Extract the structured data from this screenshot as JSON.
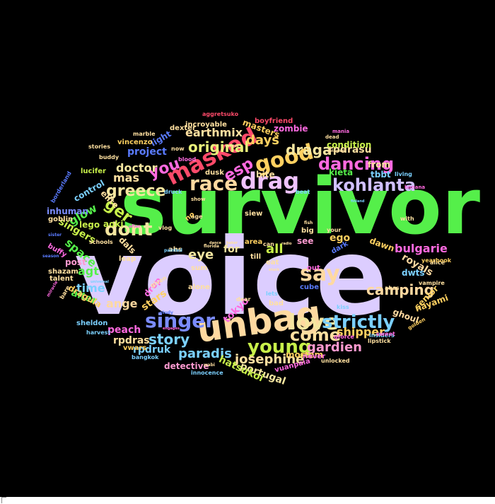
{
  "word_cloud": {
    "background": "#000000",
    "words": [
      {
        "text": "voice",
        "color": "#dccdff"
      },
      {
        "text": "survivor",
        "color": "#55ef4a"
      },
      {
        "text": "unbag",
        "color": "#ffd9a0"
      },
      {
        "text": "singer",
        "color": "#7b8cff"
      },
      {
        "text": "young",
        "color": "#c8f04a"
      },
      {
        "text": "love",
        "color": "#f5e6a0"
      },
      {
        "text": "say",
        "color": "#ffd9a0"
      },
      {
        "text": "drag",
        "color": "#f0c3ff"
      },
      {
        "text": "race",
        "color": "#ffd9a0"
      },
      {
        "text": "masked",
        "color": "#ff4a6a"
      },
      {
        "text": "good",
        "color": "#ffd060"
      },
      {
        "text": "kohlanta",
        "color": "#d0c0ff"
      },
      {
        "text": "dancing",
        "color": "#ff6ae0"
      },
      {
        "text": "dont",
        "color": "#f5e6a0"
      },
      {
        "text": "ger",
        "color": "#c8f04a"
      },
      {
        "text": "greece",
        "color": "#f5e6a0"
      },
      {
        "text": "you",
        "color": "#ff6ae0"
      },
      {
        "text": "esp",
        "color": "#ff6ae0"
      },
      {
        "text": "strictly",
        "color": "#7bd0ff"
      },
      {
        "text": "come",
        "color": "#ffe0a0"
      },
      {
        "text": "camping",
        "color": "#ffd9a0"
      },
      {
        "text": "story",
        "color": "#7bd0ff"
      },
      {
        "text": "original",
        "color": "#e8f07a"
      },
      {
        "text": "draga",
        "color": "#f5e6a0"
      },
      {
        "text": "earthmix",
        "color": "#ffe0a0"
      },
      {
        "text": "mas",
        "color": "#ffe0a0"
      },
      {
        "text": "eye",
        "color": "#f5e6a0"
      },
      {
        "text": "gardien",
        "color": "#ff9ad0"
      },
      {
        "text": "josephine",
        "color": "#ffe0a0"
      },
      {
        "text": "paradis",
        "color": "#7bd0ff"
      },
      {
        "text": "bulgarie",
        "color": "#ff6ae0"
      },
      {
        "text": "days",
        "color": "#ffd060"
      },
      {
        "text": "all",
        "color": "#c8f04a"
      },
      {
        "text": "doctor",
        "color": "#f5e6a0"
      },
      {
        "text": "glow",
        "color": "#55ef4a"
      },
      {
        "text": "time",
        "color": "#7bd0ff"
      },
      {
        "text": "ange",
        "color": "#ffd9a0"
      },
      {
        "text": "agt",
        "color": "#55ef4a"
      },
      {
        "text": "project",
        "color": "#5a7bff"
      },
      {
        "text": "shipper",
        "color": "#ffd060"
      },
      {
        "text": "royals",
        "color": "#ffd9a0"
      },
      {
        "text": "rpdrasu",
        "color": "#ffe0a0"
      },
      {
        "text": "kieta",
        "color": "#55ef4a"
      },
      {
        "text": "ego",
        "color": "#ffd060"
      },
      {
        "text": "peach",
        "color": "#ff6ae0"
      },
      {
        "text": "portugal",
        "color": "#f5e6a0"
      },
      {
        "text": "hatsukoi",
        "color": "#c8f04a"
      },
      {
        "text": "rpdras",
        "color": "#ffe0a0"
      },
      {
        "text": "rpdruk",
        "color": "#7bd0ff"
      },
      {
        "text": "detective",
        "color": "#ff9ad0"
      },
      {
        "text": "masters",
        "color": "#ffd060"
      },
      {
        "text": "zombie",
        "color": "#ff6ae0"
      },
      {
        "text": "mortem",
        "color": "#ffd060"
      },
      {
        "text": "for",
        "color": "#f5e6a0"
      },
      {
        "text": "space",
        "color": "#55ef4a"
      },
      {
        "text": "lego",
        "color": "#c8f04a"
      },
      {
        "text": "singers",
        "color": "#c8f04a"
      },
      {
        "text": "alter",
        "color": "#55ef4a"
      },
      {
        "text": "stars",
        "color": "#ffd060"
      },
      {
        "text": "tokyo",
        "color": "#ff6ae0"
      },
      {
        "text": "bite",
        "color": "#ffe0a0"
      },
      {
        "text": "see",
        "color": "#ff9ad0"
      },
      {
        "text": "dawn",
        "color": "#ffd060"
      },
      {
        "text": "dwts",
        "color": "#7bd0ff"
      },
      {
        "text": "senior",
        "color": "#ffd060"
      },
      {
        "text": "ghoul",
        "color": "#ffd9a0"
      },
      {
        "text": "nayami",
        "color": "#ffd060"
      },
      {
        "text": "tbbt",
        "color": "#7bd0ff"
      },
      {
        "text": "from",
        "color": "#ffe0a0"
      },
      {
        "text": "condition",
        "color": "#c8f04a"
      },
      {
        "text": "inhuman",
        "color": "#7b8cff"
      },
      {
        "text": "post",
        "color": "#ff9ad0"
      },
      {
        "text": "control",
        "color": "#7bd0ff"
      },
      {
        "text": "light",
        "color": "#5a7bff"
      },
      {
        "text": "elite",
        "color": "#ffe0a0"
      },
      {
        "text": "aoki",
        "color": "#c8f04a"
      },
      {
        "text": "dals",
        "color": "#ffe0a0"
      },
      {
        "text": "sheldon",
        "color": "#7bd0ff"
      },
      {
        "text": "dragula",
        "color": "#ffd060"
      },
      {
        "text": "drop",
        "color": "#ff6ae0"
      },
      {
        "text": "vwars",
        "color": "#ffd060"
      },
      {
        "text": "incroyable",
        "color": "#ffe0a0"
      },
      {
        "text": "lucifer",
        "color": "#c8f04a"
      },
      {
        "text": "vincenzo",
        "color": "#ffd060"
      },
      {
        "text": "dexter",
        "color": "#ffe0a0"
      },
      {
        "text": "boyfriend",
        "color": "#ff4a6a"
      },
      {
        "text": "aggretsuko",
        "color": "#ff4a6a"
      },
      {
        "text": "dusk",
        "color": "#ffe0a0"
      },
      {
        "text": "siew",
        "color": "#ffe0a0"
      },
      {
        "text": "area",
        "color": "#ffd060"
      },
      {
        "text": "till",
        "color": "#ffe0a0"
      },
      {
        "text": "eat",
        "color": "#ffe0a0"
      },
      {
        "text": "big",
        "color": "#ffe0a0"
      },
      {
        "text": "dark",
        "color": "#5a7bff"
      },
      {
        "text": "lets",
        "color": "#7bd0ff"
      },
      {
        "text": "bad",
        "color": "#ffe0a0"
      },
      {
        "text": "kiss",
        "color": "#7bd0ff"
      },
      {
        "text": "never",
        "color": "#ff6ae0"
      },
      {
        "text": "vuanpaia",
        "color": "#ff6ae0"
      },
      {
        "text": "unlocked",
        "color": "#ffe0a0"
      },
      {
        "text": "lipstick",
        "color": "#ffe0a0"
      },
      {
        "text": "innocence",
        "color": "#7bd0ff"
      },
      {
        "text": "bangkok",
        "color": "#7bd0ff"
      },
      {
        "text": "harvest",
        "color": "#7bd0ff"
      },
      {
        "text": "sum",
        "color": "#ffe0a0"
      },
      {
        "text": "alone",
        "color": "#ffe0a0"
      },
      {
        "text": "ahs",
        "color": "#ffe0a0"
      },
      {
        "text": "leap",
        "color": "#ffe0a0"
      },
      {
        "text": "schools",
        "color": "#ffe0a0"
      },
      {
        "text": "shazam",
        "color": "#ffe0a0"
      },
      {
        "text": "talent",
        "color": "#ffe0a0"
      },
      {
        "text": "buffy",
        "color": "#ff6ae0"
      },
      {
        "text": "goblin",
        "color": "#ffe0a0"
      },
      {
        "text": "borderland",
        "color": "#5a7bff"
      },
      {
        "text": "buddy",
        "color": "#ffe0a0"
      },
      {
        "text": "stories",
        "color": "#ffe0a0"
      },
      {
        "text": "marble",
        "color": "#ffe0a0"
      },
      {
        "text": "vlog",
        "color": "#ffe0a0"
      },
      {
        "text": "druck",
        "color": "#7bd0ff"
      },
      {
        "text": "blood",
        "color": "#ff6ae0"
      },
      {
        "text": "now",
        "color": "#ffe0a0"
      },
      {
        "text": "age",
        "color": "#ffe0a0"
      },
      {
        "text": "show",
        "color": "#ffe0a0"
      },
      {
        "text": "cube",
        "color": "#5a7bff"
      },
      {
        "text": "out",
        "color": "#ff6ae0"
      },
      {
        "text": "qforce",
        "color": "#ff6ae0"
      },
      {
        "text": "insiders",
        "color": "#7bd0ff"
      },
      {
        "text": "sweet",
        "color": "#ff6ae0"
      },
      {
        "text": "alice",
        "color": "#ffe0a0"
      },
      {
        "text": "vampire",
        "color": "#ffe0a0"
      },
      {
        "text": "yearbook",
        "color": "#ffd060"
      },
      {
        "text": "ahss",
        "color": "#ffe0a0"
      },
      {
        "text": "with",
        "color": "#ffe0a0"
      },
      {
        "text": "living",
        "color": "#7bd0ff"
      },
      {
        "text": "banana",
        "color": "#ff6ae0"
      },
      {
        "text": "mania",
        "color": "#ff6ae0"
      },
      {
        "text": "dead",
        "color": "#ffe0a0"
      },
      {
        "text": "beat",
        "color": "#7bd0ff"
      },
      {
        "text": "your",
        "color": "#ffe0a0"
      },
      {
        "text": "can",
        "color": "#ffe0a0"
      },
      {
        "text": "golden",
        "color": "#ffd060"
      },
      {
        "text": "dear",
        "color": "#ffe0a0"
      },
      {
        "text": "study",
        "color": "#5a7bff"
      },
      {
        "text": "given",
        "color": "#ffe0a0"
      },
      {
        "text": "after",
        "color": "#ff6ae0"
      },
      {
        "text": "no",
        "color": "#ffd060"
      },
      {
        "text": "sister",
        "color": "#5a7bff"
      },
      {
        "text": "season",
        "color": "#5a7bff"
      },
      {
        "text": "miracle",
        "color": "#ff6ae0"
      },
      {
        "text": "bare",
        "color": "#ffe0a0"
      },
      {
        "text": "painted",
        "color": "#7bd0ff"
      },
      {
        "text": "florida",
        "color": "#ffe0a0"
      },
      {
        "text": "wabi",
        "color": "#ffe0a0"
      },
      {
        "text": "engages",
        "color": "#ff6ae0"
      },
      {
        "text": "universal",
        "color": "#7bd0ff"
      },
      {
        "text": "finland",
        "color": "#7bd0ff"
      },
      {
        "text": "untamed",
        "color": "#ffe0a0"
      },
      {
        "text": "veritas",
        "color": "#ffe0a0"
      },
      {
        "text": "fish",
        "color": "#ffe0a0"
      },
      {
        "text": "stuck",
        "color": "#ffe0a0"
      },
      {
        "text": "dance",
        "color": "#ffe0a0"
      },
      {
        "text": "radio",
        "color": "#ffe0a0"
      },
      {
        "text": "baker",
        "color": "#ffe0a0"
      }
    ]
  }
}
